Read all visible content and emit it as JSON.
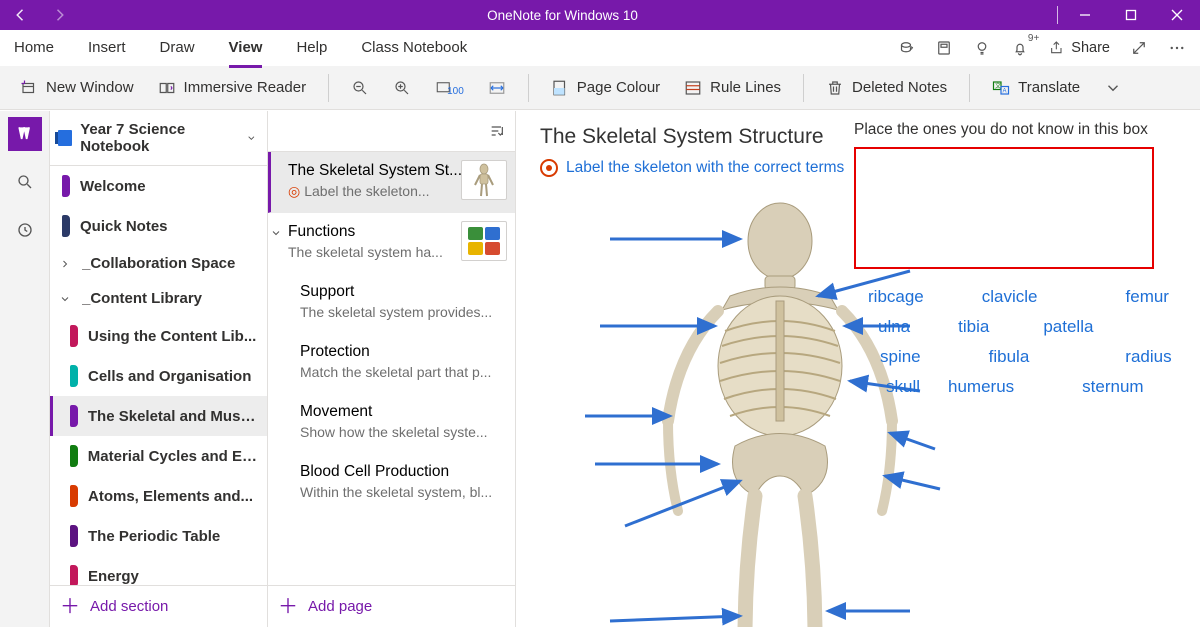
{
  "window": {
    "title": "OneNote for Windows 10",
    "share_label": "Share"
  },
  "menu": {
    "tabs": [
      "Home",
      "Insert",
      "Draw",
      "View",
      "Help",
      "Class Notebook"
    ],
    "active_index": 3,
    "notification_badge": "9+"
  },
  "ribbon": {
    "new_window": "New Window",
    "immersive_reader": "Immersive Reader",
    "page_colour": "Page Colour",
    "rule_lines": "Rule Lines",
    "deleted_notes": "Deleted Notes",
    "translate": "Translate"
  },
  "notebook": {
    "title": "Year 7 Science Notebook",
    "sections": [
      {
        "label": "Welcome",
        "color": "#7719aa",
        "type": "page"
      },
      {
        "label": "Quick Notes",
        "color": "#2b3a67",
        "type": "page"
      },
      {
        "label": "_Collaboration Space",
        "type": "group",
        "expanded": false
      },
      {
        "label": "_Content Library",
        "type": "group",
        "expanded": true,
        "children": [
          {
            "label": "Using the Content Lib...",
            "color": "#c2185b"
          },
          {
            "label": "Cells and Organisation",
            "color": "#00b1a9"
          },
          {
            "label": "The Skeletal and Musc...",
            "color": "#7719aa",
            "selected": true
          },
          {
            "label": "Material Cycles and En...",
            "color": "#107c10"
          },
          {
            "label": "Atoms, Elements and...",
            "color": "#d83b01"
          },
          {
            "label": "The Periodic Table",
            "color": "#5c1381"
          },
          {
            "label": "Energy",
            "color": "#c2185b"
          }
        ]
      }
    ],
    "add_section_label": "Add section"
  },
  "pages": {
    "add_page_label": "Add page",
    "items": [
      {
        "title": "The Skeletal System St...",
        "subtitle": "Label the skeleton...",
        "selected": true,
        "has_target_icon": true,
        "thumb": "skeleton"
      },
      {
        "title": "Functions",
        "subtitle": "The skeletal system ha...",
        "thumb": "colours",
        "group_head": true
      },
      {
        "title": "Support",
        "subtitle": "The skeletal system provides...",
        "level": 2
      },
      {
        "title": "Protection",
        "subtitle": "Match the skeletal part that p...",
        "level": 2
      },
      {
        "title": "Movement",
        "subtitle": "Show how the skeletal syste...",
        "level": 2
      },
      {
        "title": "Blood Cell Production",
        "subtitle": "Within the skeletal system, bl...",
        "level": 2
      }
    ]
  },
  "canvas": {
    "page_title": "The Skeletal System Structure",
    "task_text": "Label the skeleton with the correct terms",
    "instruction": "Place the ones you do not know in this box",
    "drop_box_border": "#e60000",
    "arrow_color": "#2f6fd0",
    "terms": [
      "ribcage",
      "clavicle",
      "femur",
      "ulna",
      "tibia",
      "patella",
      "spine",
      "fibula",
      "radius",
      "skull",
      "humerus",
      "sternum"
    ]
  },
  "colors": {
    "brand": "#7719aa",
    "link": "#1e6fd6"
  }
}
